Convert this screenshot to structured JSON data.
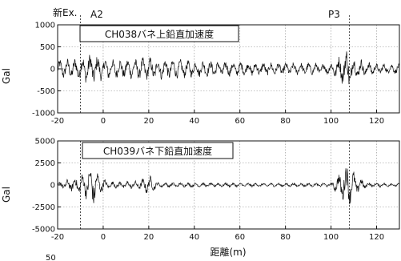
{
  "header": {
    "section": "新Ex.",
    "marker_left": "A2",
    "marker_right": "P3"
  },
  "footer": {
    "stray": "50"
  },
  "chart_data": [
    {
      "type": "line",
      "title": "CH038バネ上鉛直加速度",
      "ylabel": "Gal",
      "xlabel": "",
      "xlim": [
        -20,
        130
      ],
      "ylim": [
        -1000,
        1000
      ],
      "xticks": [
        -20,
        0,
        20,
        40,
        60,
        80,
        100,
        120
      ],
      "yticks": [
        1000,
        500,
        0,
        -500,
        -1000
      ],
      "ytick_labels": [
        "1000",
        "500",
        "0",
        "-500",
        "-1000"
      ],
      "grid": "dotted",
      "markers_x": [
        -10,
        108
      ],
      "envelope": [
        {
          "x": -20,
          "amp": 220
        },
        {
          "x": -12,
          "amp": 260
        },
        {
          "x": -5,
          "amp": 380
        },
        {
          "x": -2,
          "amp": 300
        },
        {
          "x": 5,
          "amp": 220
        },
        {
          "x": 15,
          "amp": 250
        },
        {
          "x": 20,
          "amp": 280
        },
        {
          "x": 40,
          "amp": 200
        },
        {
          "x": 60,
          "amp": 170
        },
        {
          "x": 80,
          "amp": 150
        },
        {
          "x": 100,
          "amp": 140
        },
        {
          "x": 106,
          "amp": 420
        },
        {
          "x": 108,
          "amp": 560
        },
        {
          "x": 110,
          "amp": 280
        },
        {
          "x": 120,
          "amp": 130
        },
        {
          "x": 130,
          "amp": 120
        }
      ]
    },
    {
      "type": "line",
      "title": "CH039バネ下鉛直加速度",
      "ylabel": "Gal",
      "xlabel": "距離(m)",
      "xlim": [
        -20,
        130
      ],
      "ylim": [
        -5000,
        5000
      ],
      "xticks": [
        -20,
        0,
        20,
        40,
        60,
        80,
        100,
        120
      ],
      "yticks": [
        5000,
        2500,
        0,
        -2500,
        -5000
      ],
      "ytick_labels": [
        "5000",
        "2500",
        "0",
        "-2500",
        "-5000"
      ],
      "grid": "dotted",
      "markers_x": [
        -10,
        108
      ],
      "envelope": [
        {
          "x": -20,
          "amp": 300
        },
        {
          "x": -14,
          "amp": 800
        },
        {
          "x": -8,
          "amp": 1500
        },
        {
          "x": -4,
          "amp": 2600
        },
        {
          "x": -2,
          "amp": 1200
        },
        {
          "x": 2,
          "amp": 400
        },
        {
          "x": 16,
          "amp": 500
        },
        {
          "x": 20,
          "amp": 1200
        },
        {
          "x": 24,
          "amp": 300
        },
        {
          "x": 40,
          "amp": 260
        },
        {
          "x": 60,
          "amp": 240
        },
        {
          "x": 80,
          "amp": 220
        },
        {
          "x": 100,
          "amp": 240
        },
        {
          "x": 104,
          "amp": 1500
        },
        {
          "x": 107,
          "amp": 2800
        },
        {
          "x": 111,
          "amp": 1200
        },
        {
          "x": 116,
          "amp": 300
        },
        {
          "x": 130,
          "amp": 200
        }
      ]
    }
  ]
}
